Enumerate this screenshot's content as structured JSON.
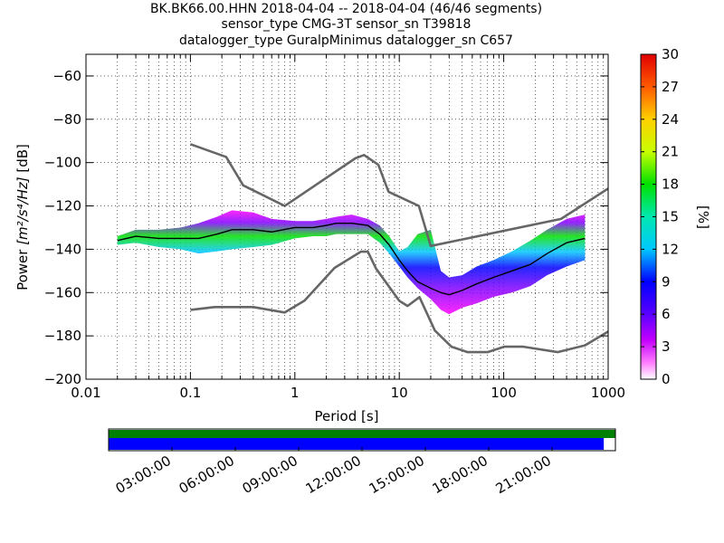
{
  "chart_data": {
    "type": "heatmap",
    "title_lines": [
      "BK.BK66.00.HHN   2018-04-04 -- 2018-04-04  (46/46 segments)",
      "sensor_type CMG-3T sensor_sn T39818",
      "datalogger_type GuralpMinimus datalogger_sn C657"
    ],
    "xlabel": "Period [s]",
    "ylabel_prefix": "Power ",
    "ylabel_units": "[m²/s⁴/Hz]",
    "ylabel_suffix": " [dB]",
    "x_scale": "log",
    "xlim": [
      0.01,
      1000
    ],
    "ylim": [
      -200,
      -50
    ],
    "x_ticks": [
      0.01,
      0.1,
      1,
      10,
      100,
      1000
    ],
    "x_tick_labels": [
      "0.01",
      "0.1",
      "1",
      "10",
      "100",
      "1000"
    ],
    "y_ticks": [
      -200,
      -180,
      -160,
      -140,
      -120,
      -100,
      -80,
      -60
    ],
    "y_tick_labels": [
      "−200",
      "−180",
      "−160",
      "−140",
      "−120",
      "−100",
      "−80",
      "−60"
    ],
    "grid": "dotted, log minor vertical lines",
    "colorbar": {
      "label": "[%]",
      "range": [
        0,
        30
      ],
      "ticks": [
        0,
        3,
        6,
        9,
        12,
        15,
        18,
        21,
        24,
        27,
        30
      ],
      "tick_labels": [
        "0",
        "3",
        "6",
        "9",
        "12",
        "15",
        "18",
        "21",
        "24",
        "27",
        "30"
      ],
      "colormap": "pqlx"
    },
    "high_noise_model": {
      "x": [
        0.1,
        0.22,
        0.32,
        0.8,
        3.8,
        4.6,
        6.3,
        7.9,
        15.4,
        20,
        354,
        1000
      ],
      "y": [
        -91.5,
        -97.4,
        -110.5,
        -120,
        -98,
        -96.5,
        -101,
        -113.5,
        -120,
        -138.5,
        -126,
        -112
      ]
    },
    "low_noise_model": {
      "x": [
        0.1,
        0.17,
        0.4,
        0.8,
        1.24,
        2.4,
        4.3,
        5.0,
        6.0,
        10.0,
        12.0,
        15.6,
        21.9,
        31.6,
        45,
        70,
        101,
        154,
        328,
        600,
        1000
      ],
      "y": [
        -168,
        -166.7,
        -166.7,
        -169.2,
        -163.7,
        -148.6,
        -141.1,
        -141.1,
        -149,
        -163.8,
        -166.2,
        -162.1,
        -177.5,
        -185,
        -187.5,
        -187.5,
        -185,
        -185,
        -187.5,
        -184.4,
        -178
      ]
    },
    "mode_curve": {
      "x": [
        0.02,
        0.03,
        0.05,
        0.08,
        0.12,
        0.18,
        0.25,
        0.4,
        0.6,
        1.0,
        1.5,
        2.0,
        2.5,
        3.5,
        5.0,
        6.5,
        8.0,
        10.0,
        12.0,
        15.0,
        20.0,
        25.0,
        30.0,
        40.0,
        55.0,
        80.0,
        120.0,
        180.0,
        260.0,
        400.0,
        600.0
      ],
      "y": [
        -136,
        -134,
        -135,
        -135,
        -135,
        -133,
        -131,
        -131,
        -132,
        -130,
        -130,
        -129,
        -128,
        -128,
        -129,
        -133,
        -138,
        -145,
        -150,
        -155,
        -158,
        -160,
        -161,
        -159,
        -156,
        -153,
        -150,
        -147,
        -142,
        -137,
        -135
      ]
    },
    "psd_spread": {
      "x": [
        0.02,
        0.03,
        0.05,
        0.08,
        0.12,
        0.18,
        0.25,
        0.4,
        0.6,
        1.0,
        1.5,
        2.0,
        2.5,
        3.5,
        5.0,
        6.5,
        8.0,
        10.0,
        12.0,
        15.0,
        20.0,
        25.0,
        30.0,
        40.0,
        55.0,
        80.0,
        120.0,
        180.0,
        260.0,
        400.0,
        600.0
      ],
      "lo": [
        -138,
        -137,
        -139,
        -140,
        -142,
        -141,
        -140,
        -139,
        -138,
        -135,
        -134,
        -134,
        -133,
        -133,
        -133,
        -137,
        -142,
        -148,
        -153,
        -158,
        -163,
        -168,
        -170,
        -167,
        -165,
        -162,
        -160,
        -157,
        -152,
        -148,
        -145
      ],
      "hi": [
        -134,
        -131,
        -131,
        -130,
        -128,
        -125,
        -122,
        -123,
        -126,
        -127,
        -127,
        -126,
        -125,
        -124,
        -126,
        -129,
        -134,
        -141,
        -139,
        -133,
        -131,
        -150,
        -153,
        -152,
        -148,
        -145,
        -141,
        -136,
        -131,
        -126,
        -124
      ]
    },
    "time_coverage": {
      "tick_labels": [
        "03:00:00",
        "06:00:00",
        "09:00:00",
        "12:00:00",
        "15:00:00",
        "18:00:00",
        "21:00:00"
      ],
      "tick_hours": [
        3,
        6,
        9,
        12,
        15,
        18,
        21
      ],
      "span_hours": [
        0,
        24
      ],
      "data_coverage_hours": [
        0,
        23.45
      ],
      "data_available_color": "#008000",
      "gaps_color": "#0000ff",
      "noise_model_color": "#666666",
      "mode_color": "#000000"
    }
  }
}
